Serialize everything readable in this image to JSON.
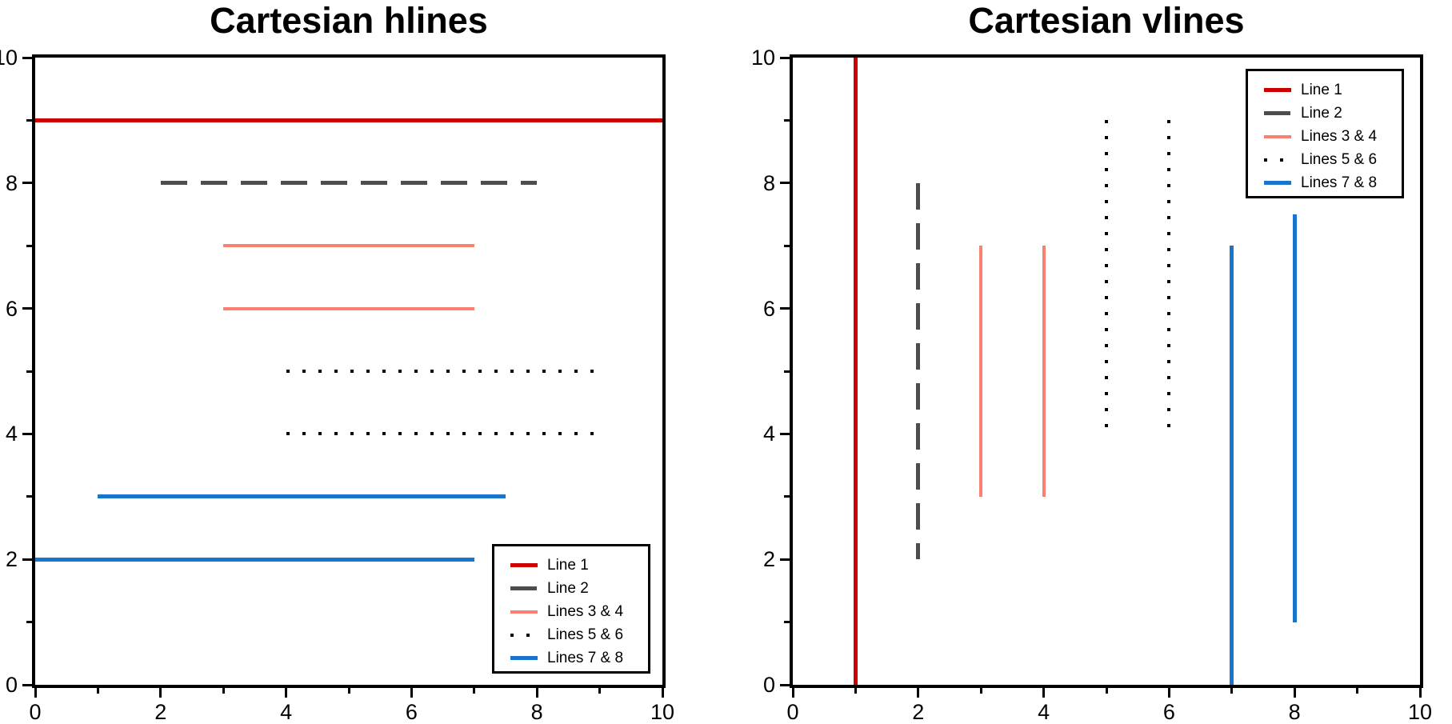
{
  "background": "#ffffff",
  "chart_data": [
    {
      "type": "line",
      "subtype": "hlines",
      "title": "Cartesian hlines",
      "xlim": [
        0,
        10
      ],
      "ylim": [
        0,
        10
      ],
      "x_major_ticks": [
        0,
        2,
        4,
        6,
        8,
        10
      ],
      "x_minor_ticks": [
        1,
        3,
        5,
        7,
        9
      ],
      "y_major_ticks": [
        0,
        2,
        4,
        6,
        8,
        10
      ],
      "y_minor_ticks": [
        1,
        3,
        5,
        7,
        9
      ],
      "grid": false,
      "frame_color": "#000000",
      "legend_position": "bottom-right",
      "series": [
        {
          "label": "Line 1",
          "color": "#CD0000",
          "linestyle": "solid",
          "linewidth": 5,
          "segments": [
            {
              "y": 9,
              "xmin": 0,
              "xmax": 10
            }
          ]
        },
        {
          "label": "Line 2",
          "color": "#4D4D4D",
          "linestyle": "dashed",
          "linewidth": 5,
          "segments": [
            {
              "y": 8,
              "xmin": 2,
              "xmax": 8
            }
          ]
        },
        {
          "label": "Lines 3 & 4",
          "color": "#FA8072",
          "linestyle": "solid",
          "linewidth": 4,
          "segments": [
            {
              "y": 7,
              "xmin": 3,
              "xmax": 7
            },
            {
              "y": 6,
              "xmin": 3,
              "xmax": 7
            }
          ]
        },
        {
          "label": "Lines 5 & 6",
          "color": "#000000",
          "linestyle": "dotted",
          "linewidth": 4,
          "segments": [
            {
              "y": 5,
              "xmin": 4,
              "xmax": 9
            },
            {
              "y": 4,
              "xmin": 4,
              "xmax": 9
            }
          ]
        },
        {
          "label": "Lines 7 & 8",
          "color": "#1874CD",
          "linestyle": "solid",
          "linewidth": 5,
          "segments": [
            {
              "y": 3,
              "xmin": 1,
              "xmax": 7.5
            },
            {
              "y": 2,
              "xmin": 0,
              "xmax": 7
            }
          ]
        }
      ]
    },
    {
      "type": "line",
      "subtype": "vlines",
      "title": "Cartesian vlines",
      "xlim": [
        0,
        10
      ],
      "ylim": [
        0,
        10
      ],
      "x_major_ticks": [
        0,
        2,
        4,
        6,
        8,
        10
      ],
      "x_minor_ticks": [
        1,
        3,
        5,
        7,
        9
      ],
      "y_major_ticks": [
        0,
        2,
        4,
        6,
        8,
        10
      ],
      "y_minor_ticks": [
        1,
        3,
        5,
        7,
        9
      ],
      "grid": false,
      "frame_color": "#000000",
      "legend_position": "top-right",
      "series": [
        {
          "label": "Line 1",
          "color": "#CD0000",
          "linestyle": "solid",
          "linewidth": 5,
          "segments": [
            {
              "x": 1,
              "ymin": 0,
              "ymax": 10
            }
          ]
        },
        {
          "label": "Line 2",
          "color": "#4D4D4D",
          "linestyle": "dashed",
          "linewidth": 5,
          "segments": [
            {
              "x": 2,
              "ymin": 2,
              "ymax": 8
            }
          ]
        },
        {
          "label": "Lines 3 & 4",
          "color": "#FA8072",
          "linestyle": "solid",
          "linewidth": 4,
          "segments": [
            {
              "x": 3,
              "ymin": 3,
              "ymax": 7
            },
            {
              "x": 4,
              "ymin": 3,
              "ymax": 7
            }
          ]
        },
        {
          "label": "Lines 5 & 6",
          "color": "#000000",
          "linestyle": "dotted",
          "linewidth": 4,
          "segments": [
            {
              "x": 5,
              "ymin": 4,
              "ymax": 9
            },
            {
              "x": 6,
              "ymin": 4,
              "ymax": 9
            }
          ]
        },
        {
          "label": "Lines 7 & 8",
          "color": "#1874CD",
          "linestyle": "solid",
          "linewidth": 5,
          "segments": [
            {
              "x": 7,
              "ymin": 0,
              "ymax": 7
            },
            {
              "x": 8,
              "ymin": 1,
              "ymax": 7.5
            }
          ]
        }
      ]
    }
  ]
}
